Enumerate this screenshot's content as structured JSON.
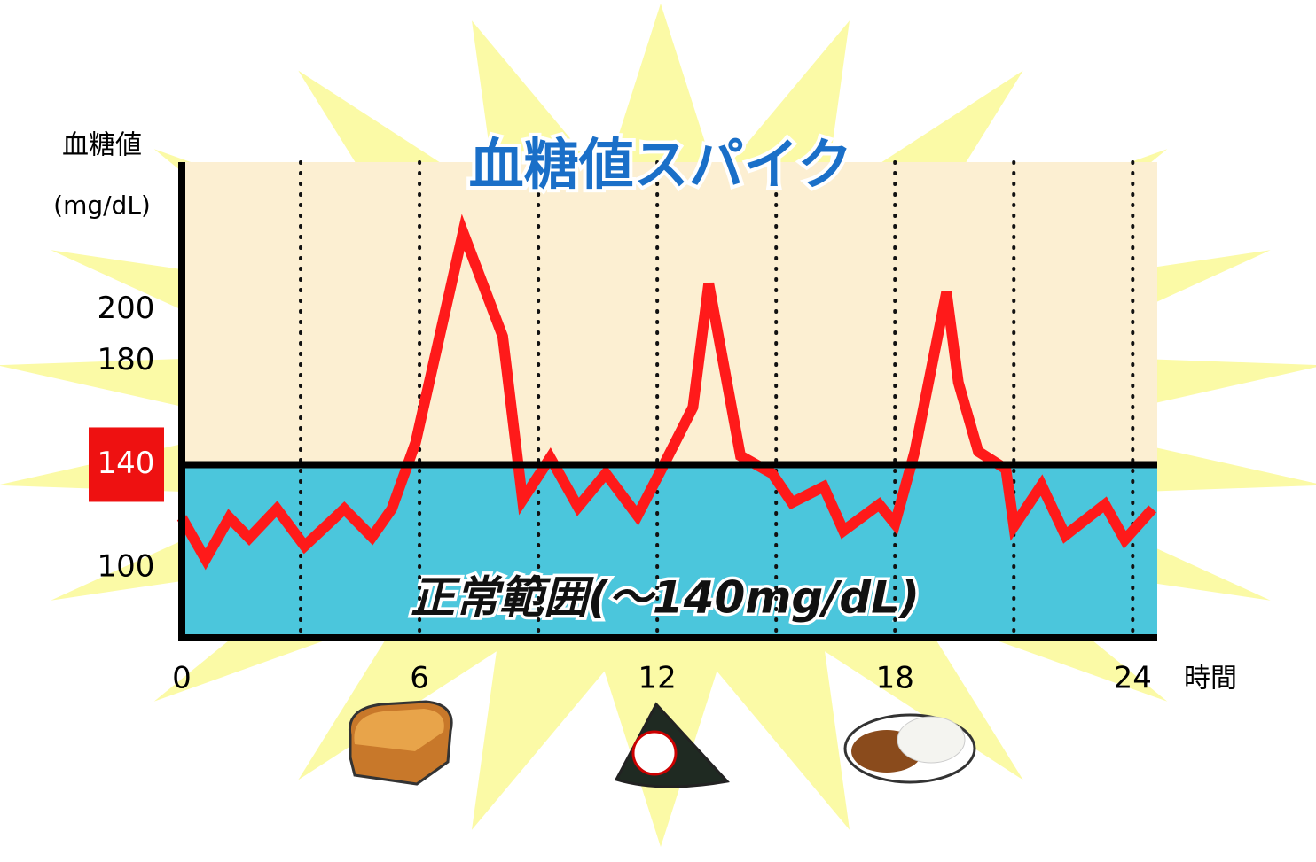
{
  "chart_data": {
    "type": "line",
    "title": "血糖値スパイク",
    "y_label_line1": "血糖値",
    "y_label_line2": "(mg/dL)",
    "x_label": "時間",
    "band_label": "正常範囲(～140mg/dL)",
    "threshold": 140,
    "xlim": [
      0,
      24.62
    ],
    "xticks": [
      0,
      6,
      12,
      18,
      24
    ],
    "xgrid": [
      3,
      6,
      9,
      12,
      15,
      18,
      21,
      24
    ],
    "ylim": [
      73,
      257
    ],
    "yticks": [
      100,
      140,
      180,
      200
    ],
    "highlight_tick": 140,
    "colors": {
      "line": "#ff1a1a",
      "above": "#fcefd2",
      "below": "#4bc6dc",
      "highlight": "#ee1111"
    },
    "x": [
      0,
      0.6,
      1.2,
      1.7,
      2.4,
      3.1,
      4.1,
      4.8,
      5.3,
      5.9,
      7.1,
      8.1,
      8.6,
      9.3,
      10,
      10.7,
      11.5,
      12.2,
      12.9,
      13.3,
      14.1,
      14.9,
      15.4,
      16.2,
      16.7,
      17.6,
      18,
      18.5,
      19.3,
      19.6,
      20.1,
      20.8,
      21,
      21.7,
      22.3,
      23.3,
      23.8,
      24.5
    ],
    "values": [
      119.5,
      103.4,
      119.5,
      111.6,
      122.9,
      108.5,
      122.9,
      112,
      122.9,
      148.5,
      229.9,
      189.6,
      126.3,
      142.7,
      123.6,
      136.6,
      120.2,
      141,
      162.2,
      210.1,
      143.4,
      136.6,
      125.3,
      131.5,
      114.4,
      124.6,
      117.1,
      145.1,
      206.7,
      171.8,
      145.1,
      138.3,
      116.1,
      132.1,
      112.6,
      124.6,
      110.9,
      122.9
    ]
  }
}
